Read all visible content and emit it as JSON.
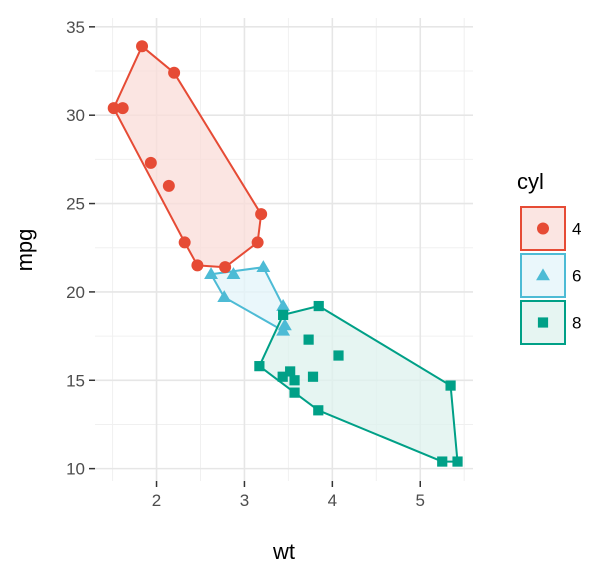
{
  "chart_data": {
    "type": "scatter",
    "title": "",
    "xlabel": "wt",
    "ylabel": "mpg",
    "xlim": [
      1.3,
      5.6
    ],
    "ylim": [
      9.3,
      35.5
    ],
    "x_ticks": [
      2,
      3,
      4,
      5
    ],
    "x_tick_labels": [
      "2",
      "3",
      "4",
      "5"
    ],
    "y_ticks": [
      10,
      15,
      20,
      25,
      30,
      35
    ],
    "y_tick_labels": [
      "10",
      "15",
      "20",
      "25",
      "30",
      "35"
    ],
    "grid": true,
    "legend": {
      "title": "cyl",
      "position": "right"
    },
    "series": [
      {
        "name": "4",
        "color": "#E64B35",
        "fill": "#FADCD8",
        "shape": "circle",
        "points": [
          [
            2.32,
            22.8
          ],
          [
            3.19,
            24.4
          ],
          [
            3.15,
            22.8
          ],
          [
            2.2,
            32.4
          ],
          [
            1.615,
            30.4
          ],
          [
            1.835,
            33.9
          ],
          [
            2.465,
            21.5
          ],
          [
            1.935,
            27.3
          ],
          [
            2.14,
            26.0
          ],
          [
            1.513,
            30.4
          ],
          [
            2.78,
            21.4
          ]
        ],
        "hull": [
          [
            1.513,
            30.4
          ],
          [
            1.835,
            33.9
          ],
          [
            2.2,
            32.4
          ],
          [
            3.19,
            24.4
          ],
          [
            3.15,
            22.8
          ],
          [
            2.78,
            21.4
          ],
          [
            2.465,
            21.5
          ],
          [
            2.32,
            22.8
          ]
        ]
      },
      {
        "name": "6",
        "color": "#4DBBD5",
        "fill": "#E3F4F9",
        "shape": "triangle",
        "points": [
          [
            2.62,
            21.0
          ],
          [
            2.875,
            21.0
          ],
          [
            3.215,
            21.4
          ],
          [
            3.46,
            18.1
          ],
          [
            3.44,
            19.2
          ],
          [
            3.44,
            17.8
          ],
          [
            2.77,
            19.7
          ]
        ],
        "hull": [
          [
            2.62,
            21.0
          ],
          [
            3.215,
            21.4
          ],
          [
            3.44,
            19.2
          ],
          [
            3.46,
            18.1
          ],
          [
            3.44,
            17.8
          ],
          [
            2.77,
            19.7
          ]
        ]
      },
      {
        "name": "8",
        "color": "#00A087",
        "fill": "#DDF1EE",
        "shape": "square",
        "points": [
          [
            3.44,
            18.7
          ],
          [
            3.57,
            14.3
          ],
          [
            4.07,
            16.4
          ],
          [
            3.73,
            17.3
          ],
          [
            3.78,
            15.2
          ],
          [
            5.25,
            10.4
          ],
          [
            5.424,
            10.4
          ],
          [
            5.345,
            14.7
          ],
          [
            3.52,
            15.5
          ],
          [
            3.435,
            15.2
          ],
          [
            3.84,
            13.3
          ],
          [
            3.845,
            19.2
          ],
          [
            3.17,
            15.8
          ],
          [
            3.57,
            15.0
          ]
        ],
        "hull": [
          [
            3.44,
            18.7
          ],
          [
            3.845,
            19.2
          ],
          [
            5.345,
            14.7
          ],
          [
            5.424,
            10.4
          ],
          [
            5.25,
            10.4
          ],
          [
            3.84,
            13.3
          ],
          [
            3.57,
            14.3
          ],
          [
            3.17,
            15.8
          ]
        ]
      }
    ]
  }
}
